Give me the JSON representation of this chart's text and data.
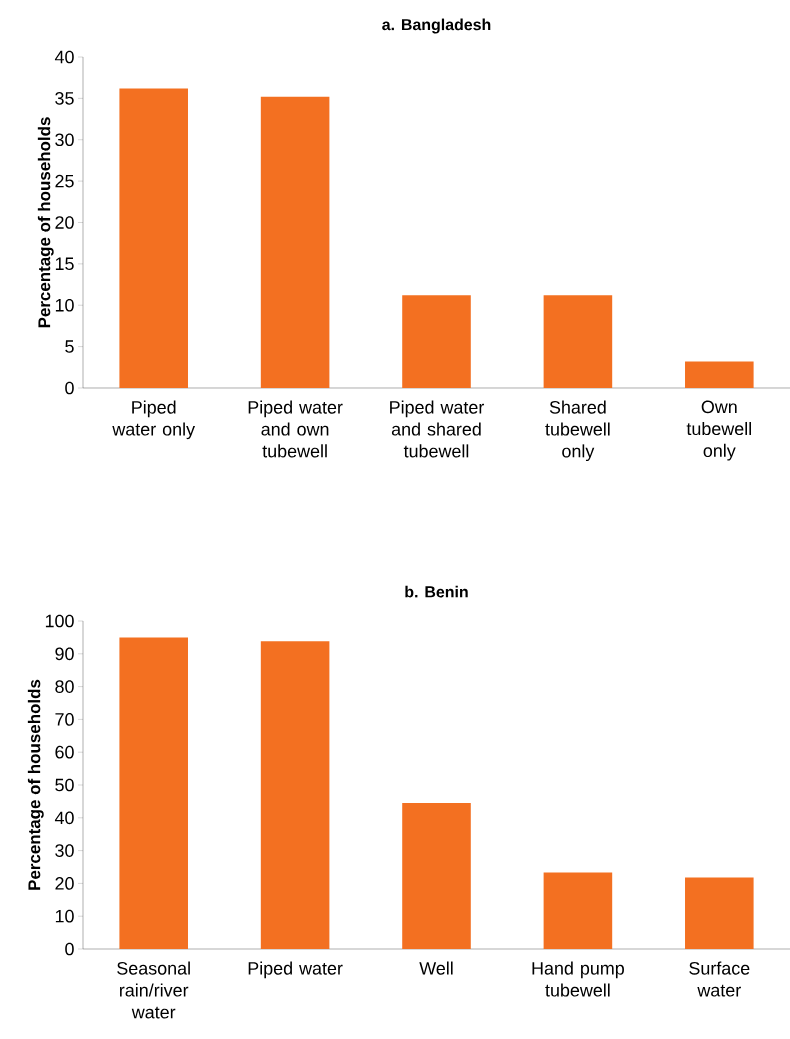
{
  "chart_data": [
    {
      "type": "bar",
      "title": "a. Bangladesh",
      "ylabel": "Percentage of households",
      "categories": [
        "Piped water only",
        "Piped water and own tubewell",
        "Piped water and shared tubewell",
        "Shared tubewell only",
        "Own tubewell only"
      ],
      "values": [
        36.2,
        35.2,
        11.2,
        11.2,
        3.2
      ],
      "color": "#f37021",
      "ylim": [
        0,
        40
      ],
      "yticks": [
        0,
        5,
        10,
        15,
        20,
        25,
        30,
        35,
        40
      ]
    },
    {
      "type": "bar",
      "title": "b. Benin",
      "ylabel": "Percentage of households",
      "categories": [
        "Seasonal rain/river water",
        "Piped water",
        "Well",
        "Hand pump tubewell",
        "Surface water"
      ],
      "values": [
        95.0,
        93.8,
        44.5,
        23.3,
        21.8
      ],
      "color": "#f37021",
      "ylim": [
        0,
        100
      ],
      "yticks": [
        0,
        10,
        20,
        30,
        40,
        50,
        60,
        70,
        80,
        90,
        100
      ]
    }
  ]
}
